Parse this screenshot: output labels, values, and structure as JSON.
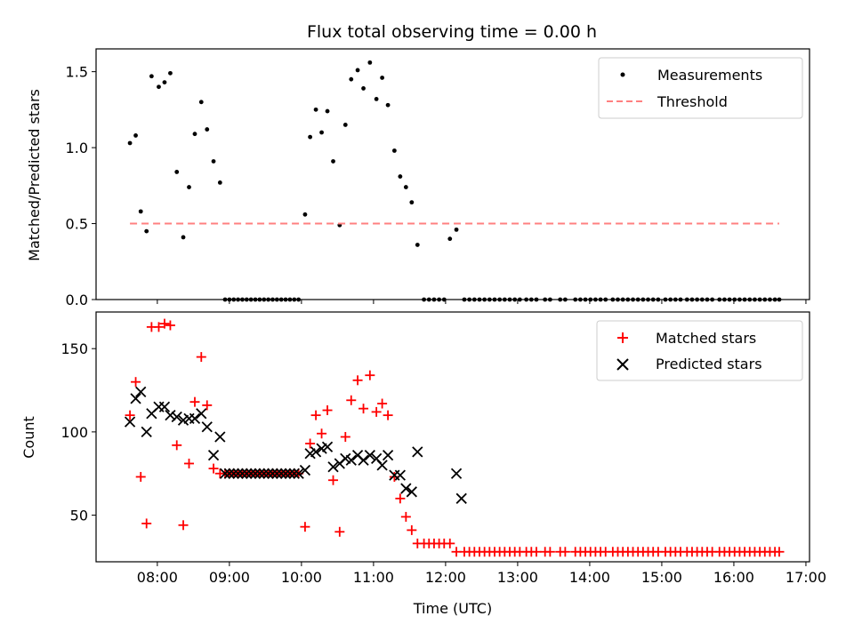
{
  "chart_data": {
    "title": "Flux total observing time = 0.00 h",
    "xlabel": "Time (UTC)",
    "x_unit": "hours since 00:00 UTC",
    "xlim": [
      7.15,
      17.05
    ],
    "x_ticks": [
      8,
      9,
      10,
      11,
      12,
      13,
      14,
      15,
      16,
      17
    ],
    "x_tick_labels": [
      "08:00",
      "09:00",
      "10:00",
      "11:00",
      "12:00",
      "13:00",
      "14:00",
      "15:00",
      "16:00",
      "17:00"
    ],
    "panels": [
      {
        "type": "scatter",
        "ylabel": "Matched/Predicted stars",
        "ylim": [
          0,
          1.65
        ],
        "y_ticks": [
          0.0,
          0.5,
          1.0,
          1.5
        ],
        "y_tick_labels": [
          "0.0",
          "0.5",
          "1.0",
          "1.5"
        ],
        "legend_position": "top-right",
        "series": [
          {
            "name": "Measurements",
            "marker": "dot",
            "color": "#000000",
            "x": [
              7.62,
              7.7,
              7.77,
              7.85,
              7.92,
              8.02,
              8.1,
              8.18,
              8.27,
              8.36,
              8.44,
              8.52,
              8.61,
              8.69,
              8.78,
              8.87,
              8.94,
              9.0,
              9.06,
              9.12,
              9.18,
              9.24,
              9.3,
              9.36,
              9.42,
              9.48,
              9.54,
              9.6,
              9.66,
              9.72,
              9.78,
              9.84,
              9.9,
              9.96,
              10.05,
              10.12,
              10.2,
              10.28,
              10.36,
              10.44,
              10.53,
              10.61,
              10.69,
              10.78,
              10.86,
              10.95,
              11.04,
              11.12,
              11.2,
              11.29,
              11.37,
              11.45,
              11.53,
              11.61,
              11.7,
              11.77,
              11.84,
              11.91,
              11.98,
              12.06,
              12.15,
              12.26,
              12.33,
              12.4,
              12.47,
              12.54,
              12.61,
              12.68,
              12.75,
              12.82,
              12.89,
              12.96,
              13.03,
              13.12,
              13.19,
              13.26,
              13.38,
              13.45,
              13.59,
              13.66,
              13.8,
              13.87,
              13.94,
              14.01,
              14.08,
              14.15,
              14.22,
              14.32,
              14.39,
              14.46,
              14.53,
              14.6,
              14.67,
              14.74,
              14.81,
              14.88,
              14.95,
              15.05,
              15.12,
              15.19,
              15.26,
              15.35,
              15.42,
              15.49,
              15.56,
              15.63,
              15.7,
              15.8,
              15.87,
              15.94,
              16.01,
              16.08,
              16.15,
              16.22,
              16.29,
              16.36,
              16.43,
              16.5,
              16.57,
              16.63
            ],
            "y": [
              1.03,
              1.08,
              0.58,
              0.45,
              1.47,
              1.4,
              1.43,
              1.49,
              0.84,
              0.41,
              0.74,
              1.09,
              1.3,
              1.12,
              0.91,
              0.77,
              0,
              0,
              0,
              0,
              0,
              0,
              0,
              0,
              0,
              0,
              0,
              0,
              0,
              0,
              0,
              0,
              0,
              0,
              0.56,
              1.07,
              1.25,
              1.1,
              1.24,
              0.91,
              0.49,
              1.15,
              1.45,
              1.51,
              1.39,
              1.56,
              1.32,
              1.46,
              1.28,
              0.98,
              0.81,
              0.74,
              0.64,
              0.36,
              0,
              0,
              0,
              0,
              0,
              0.4,
              0.46,
              0,
              0,
              0,
              0,
              0,
              0,
              0,
              0,
              0,
              0,
              0,
              0,
              0,
              0,
              0,
              0,
              0,
              0,
              0,
              0,
              0,
              0,
              0,
              0,
              0,
              0,
              0,
              0,
              0,
              0,
              0,
              0,
              0,
              0,
              0,
              0,
              0,
              0,
              0,
              0,
              0,
              0,
              0,
              0,
              0,
              0,
              0,
              0,
              0,
              0,
              0,
              0,
              0,
              0,
              0,
              0,
              0,
              0,
              0
            ]
          },
          {
            "name": "Threshold",
            "line": "dashed",
            "color": "#ff8080",
            "x": [
              7.62,
              16.63
            ],
            "y": [
              0.5,
              0.5
            ]
          }
        ]
      },
      {
        "type": "scatter",
        "ylabel": "Count",
        "ylim": [
          22,
          172
        ],
        "y_ticks": [
          50,
          100,
          150
        ],
        "y_tick_labels": [
          "50",
          "100",
          "150"
        ],
        "legend_position": "top-right",
        "series": [
          {
            "name": "Matched stars",
            "marker": "plus",
            "color": "#ff0000",
            "x": [
              7.62,
              7.7,
              7.77,
              7.85,
              7.92,
              8.02,
              8.1,
              8.18,
              8.27,
              8.36,
              8.44,
              8.52,
              8.61,
              8.69,
              8.78,
              8.87,
              8.94,
              9.0,
              9.06,
              9.12,
              9.18,
              9.24,
              9.3,
              9.36,
              9.42,
              9.48,
              9.54,
              9.6,
              9.66,
              9.72,
              9.78,
              9.84,
              9.9,
              9.96,
              10.05,
              10.12,
              10.2,
              10.28,
              10.36,
              10.44,
              10.53,
              10.61,
              10.69,
              10.78,
              10.86,
              10.95,
              11.04,
              11.12,
              11.2,
              11.29,
              11.37,
              11.45,
              11.53,
              11.61,
              11.7,
              11.77,
              11.84,
              11.91,
              11.98,
              12.06,
              12.15,
              12.26,
              12.33,
              12.4,
              12.47,
              12.54,
              12.61,
              12.68,
              12.75,
              12.82,
              12.89,
              12.96,
              13.03,
              13.12,
              13.19,
              13.26,
              13.38,
              13.45,
              13.59,
              13.66,
              13.8,
              13.87,
              13.94,
              14.01,
              14.08,
              14.15,
              14.22,
              14.32,
              14.39,
              14.46,
              14.53,
              14.6,
              14.67,
              14.74,
              14.81,
              14.88,
              14.95,
              15.05,
              15.12,
              15.19,
              15.26,
              15.35,
              15.42,
              15.49,
              15.56,
              15.63,
              15.7,
              15.8,
              15.87,
              15.94,
              16.01,
              16.08,
              16.15,
              16.22,
              16.29,
              16.36,
              16.43,
              16.5,
              16.57,
              16.63
            ],
            "y": [
              110,
              130,
              73,
              45,
              163,
              163,
              165,
              164,
              92,
              44,
              81,
              118,
              145,
              116,
              78,
              75,
              75,
              75,
              75,
              75,
              75,
              75,
              75,
              75,
              75,
              75,
              75,
              75,
              75,
              75,
              75,
              75,
              75,
              75,
              43,
              93,
              110,
              99,
              113,
              71,
              40,
              97,
              119,
              131,
              114,
              134,
              112,
              117,
              110,
              73,
              60,
              49,
              41,
              33,
              33,
              33,
              33,
              33,
              33,
              33,
              28,
              28,
              28,
              28,
              28,
              28,
              28,
              28,
              28,
              28,
              28,
              28,
              28,
              28,
              28,
              28,
              28,
              28,
              28,
              28,
              28,
              28,
              28,
              28,
              28,
              28,
              28,
              28,
              28,
              28,
              28,
              28,
              28,
              28,
              28,
              28,
              28,
              28,
              28,
              28,
              28,
              28,
              28,
              28,
              28,
              28,
              28,
              28,
              28,
              28,
              28,
              28,
              28,
              28,
              28,
              28,
              28,
              28,
              28,
              28
            ]
          },
          {
            "name": "Predicted stars",
            "marker": "x",
            "color": "#000000",
            "x": [
              7.62,
              7.7,
              7.77,
              7.85,
              7.92,
              8.02,
              8.1,
              8.18,
              8.27,
              8.36,
              8.44,
              8.52,
              8.61,
              8.69,
              8.78,
              8.87,
              8.94,
              9.0,
              9.06,
              9.12,
              9.18,
              9.24,
              9.3,
              9.36,
              9.42,
              9.48,
              9.54,
              9.6,
              9.66,
              9.72,
              9.78,
              9.84,
              9.9,
              9.96,
              10.05,
              10.12,
              10.2,
              10.28,
              10.36,
              10.44,
              10.53,
              10.61,
              10.69,
              10.78,
              10.86,
              10.95,
              11.04,
              11.12,
              11.2,
              11.29,
              11.37,
              11.45,
              11.53,
              11.61,
              12.15,
              12.22
            ],
            "y": [
              106,
              120,
              124,
              100,
              111,
              115,
              115,
              110,
              109,
              107,
              108,
              108,
              111,
              103,
              86,
              97,
              75,
              75,
              75,
              75,
              75,
              75,
              75,
              75,
              75,
              75,
              75,
              75,
              75,
              75,
              75,
              75,
              75,
              75,
              77,
              87,
              88,
              90,
              91,
              79,
              81,
              84,
              83,
              86,
              83,
              86,
              84,
              80,
              86,
              74,
              74,
              66,
              64,
              88,
              75,
              60
            ]
          }
        ]
      }
    ]
  }
}
